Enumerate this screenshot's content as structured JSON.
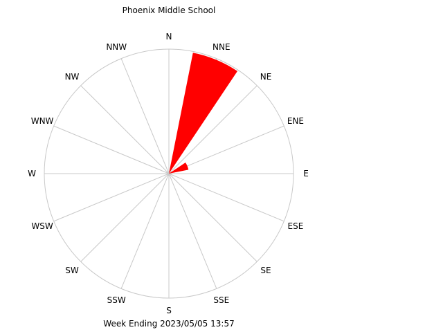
{
  "chart_data": {
    "type": "wind-rose",
    "title": "Phoenix Middle School",
    "subtitle": "Week Ending 2023/05/05 13:57",
    "directions": [
      "N",
      "NNE",
      "NE",
      "ENE",
      "E",
      "ESE",
      "SE",
      "SSE",
      "S",
      "SSW",
      "SW",
      "WSW",
      "W",
      "WNW",
      "NW",
      "NNW"
    ],
    "values": [
      0,
      0.99,
      0,
      0.16,
      0,
      0,
      0,
      0,
      0,
      0,
      0,
      0,
      0,
      0,
      0,
      0
    ],
    "rmax": 1,
    "colors": {
      "petal": "#ff0000",
      "grid": "#c8c8c8",
      "text": "#000000"
    }
  }
}
